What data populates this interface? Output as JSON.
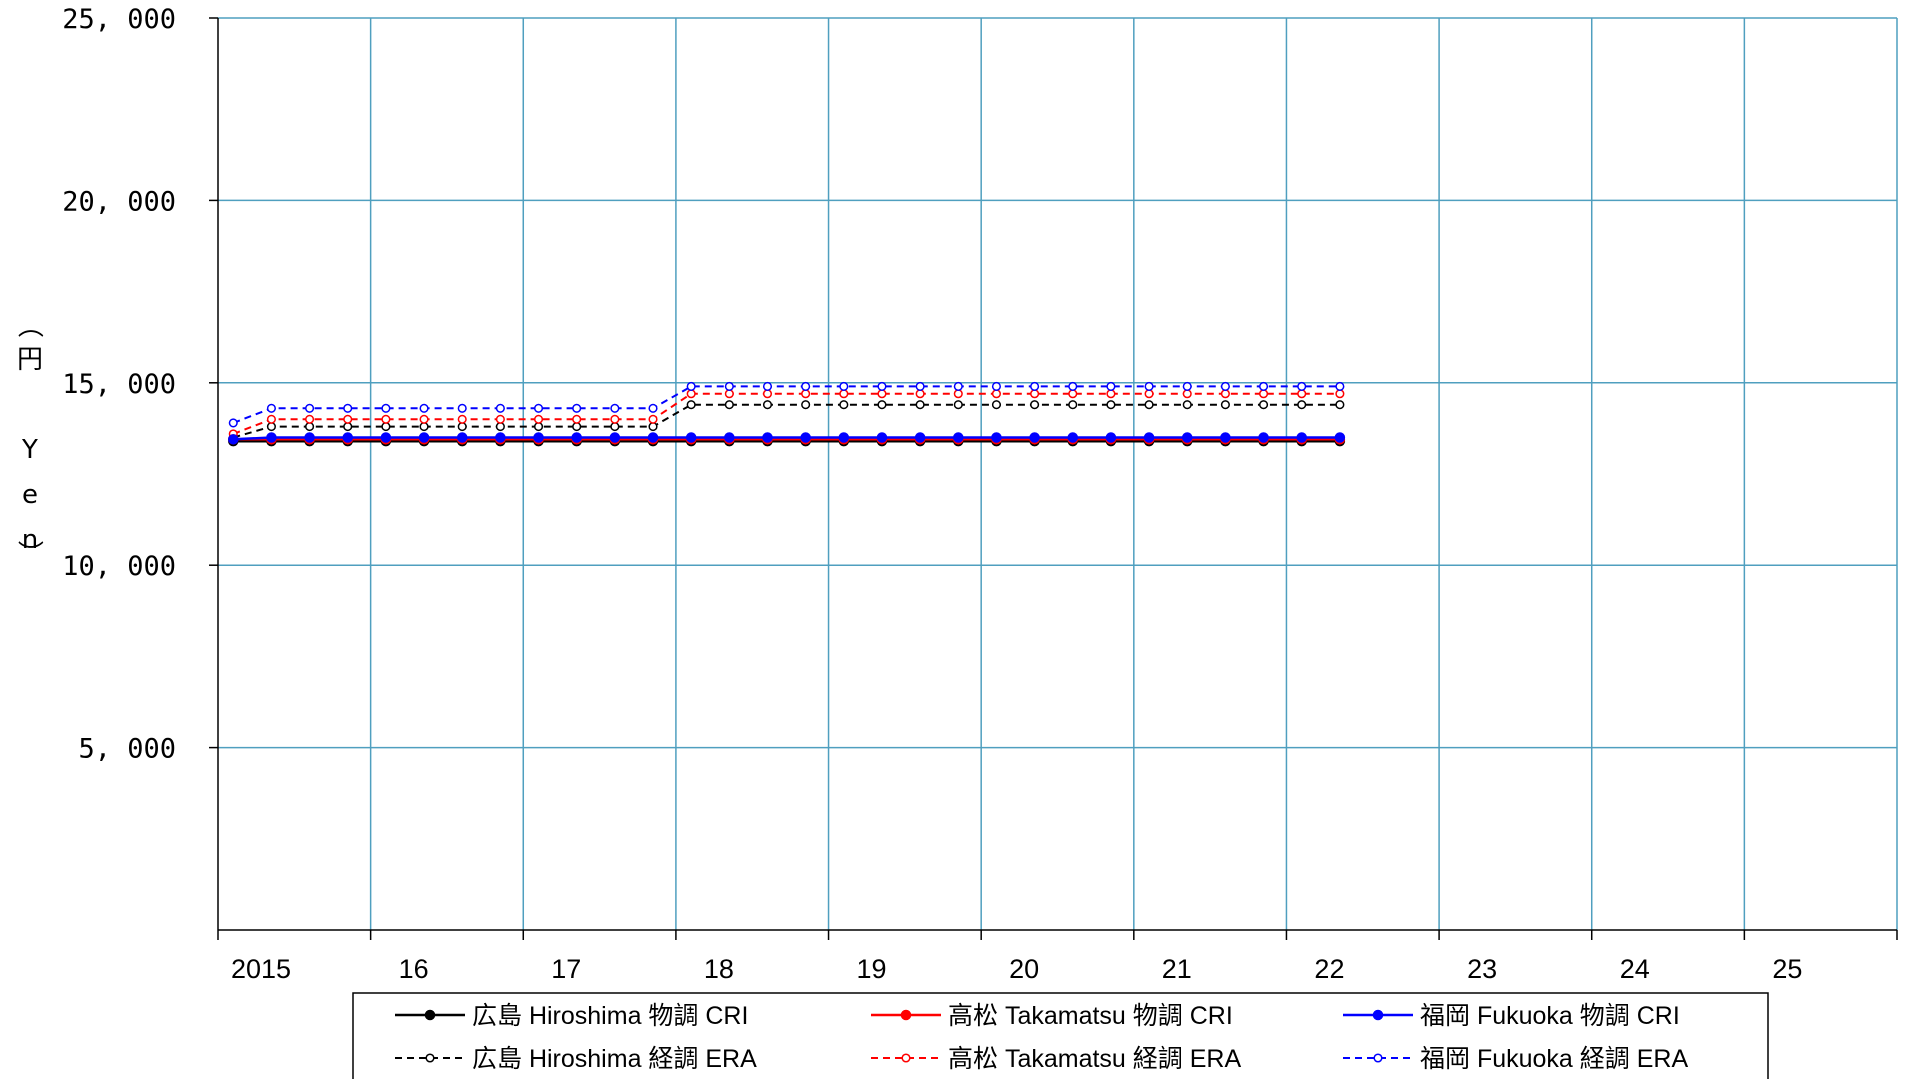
{
  "chart_data": {
    "type": "line",
    "ylabel_chars": [
      "（",
      "円",
      "Y",
      "e",
      "n",
      "）"
    ],
    "ylim": [
      0,
      25000
    ],
    "yticks": [
      5000,
      10000,
      15000,
      20000,
      25000
    ],
    "ytick_labels": [
      "5, 000",
      "10, 000",
      "15, 000",
      "20, 000",
      "25, 000"
    ],
    "xlim": [
      2015,
      2026
    ],
    "xticks": [
      2015,
      2016,
      2017,
      2018,
      2019,
      2020,
      2021,
      2022,
      2023,
      2024,
      2025
    ],
    "xtick_labels": [
      "2015",
      "16",
      "17",
      "18",
      "19",
      "20",
      "21",
      "22",
      "23",
      "24",
      "25"
    ],
    "grid": true,
    "legend_position": "bottom",
    "x": [
      2015.1,
      2015.35,
      2015.6,
      2015.85,
      2016.1,
      2016.35,
      2016.6,
      2016.85,
      2017.1,
      2017.35,
      2017.6,
      2017.85,
      2018.1,
      2018.35,
      2018.6,
      2018.85,
      2019.1,
      2019.35,
      2019.6,
      2019.85,
      2020.1,
      2020.35,
      2020.6,
      2020.85,
      2021.1,
      2021.35,
      2021.6,
      2021.85,
      2022.1,
      2022.35
    ],
    "series": [
      {
        "name": "広島 Hiroshima 物調 CRI",
        "color": "#000000",
        "dashed": false,
        "filled": true,
        "values": [
          13400,
          13400,
          13400,
          13400,
          13400,
          13400,
          13400,
          13400,
          13400,
          13400,
          13400,
          13400,
          13400,
          13400,
          13400,
          13400,
          13400,
          13400,
          13400,
          13400,
          13400,
          13400,
          13400,
          13400,
          13400,
          13400,
          13400,
          13400,
          13400,
          13400
        ]
      },
      {
        "name": "高松 Takamatsu 物調 CRI",
        "color": "#ff0000",
        "dashed": false,
        "filled": true,
        "values": [
          13450,
          13450,
          13450,
          13450,
          13450,
          13450,
          13450,
          13450,
          13450,
          13450,
          13450,
          13450,
          13450,
          13450,
          13450,
          13450,
          13450,
          13450,
          13450,
          13450,
          13450,
          13450,
          13450,
          13450,
          13450,
          13450,
          13450,
          13450,
          13450,
          13450
        ]
      },
      {
        "name": "福岡 Fukuoka  物調 CRI",
        "color": "#0000ff",
        "dashed": false,
        "filled": true,
        "values": [
          13450,
          13500,
          13500,
          13500,
          13500,
          13500,
          13500,
          13500,
          13500,
          13500,
          13500,
          13500,
          13500,
          13500,
          13500,
          13500,
          13500,
          13500,
          13500,
          13500,
          13500,
          13500,
          13500,
          13500,
          13500,
          13500,
          13500,
          13500,
          13500,
          13500
        ]
      },
      {
        "name": "広島 Hiroshima 経調 ERA",
        "color": "#000000",
        "dashed": true,
        "filled": false,
        "values": [
          13500,
          13800,
          13800,
          13800,
          13800,
          13800,
          13800,
          13800,
          13800,
          13800,
          13800,
          13800,
          14400,
          14400,
          14400,
          14400,
          14400,
          14400,
          14400,
          14400,
          14400,
          14400,
          14400,
          14400,
          14400,
          14400,
          14400,
          14400,
          14400,
          14400
        ]
      },
      {
        "name": "高松 Takamatsu 経調 ERA",
        "color": "#ff0000",
        "dashed": true,
        "filled": false,
        "values": [
          13600,
          14000,
          14000,
          14000,
          14000,
          14000,
          14000,
          14000,
          14000,
          14000,
          14000,
          14000,
          14700,
          14700,
          14700,
          14700,
          14700,
          14700,
          14700,
          14700,
          14700,
          14700,
          14700,
          14700,
          14700,
          14700,
          14700,
          14700,
          14700,
          14700
        ]
      },
      {
        "name": "福岡 Fukuoka  経調 ERA",
        "color": "#0000ff",
        "dashed": true,
        "filled": false,
        "values": [
          13900,
          14300,
          14300,
          14300,
          14300,
          14300,
          14300,
          14300,
          14300,
          14300,
          14300,
          14300,
          14900,
          14900,
          14900,
          14900,
          14900,
          14900,
          14900,
          14900,
          14900,
          14900,
          14900,
          14900,
          14900,
          14900,
          14900,
          14900,
          14900,
          14900
        ]
      }
    ],
    "colors": {
      "grid": "#4f9fbf",
      "axis": "#000000",
      "legend_border": "#000000"
    }
  }
}
